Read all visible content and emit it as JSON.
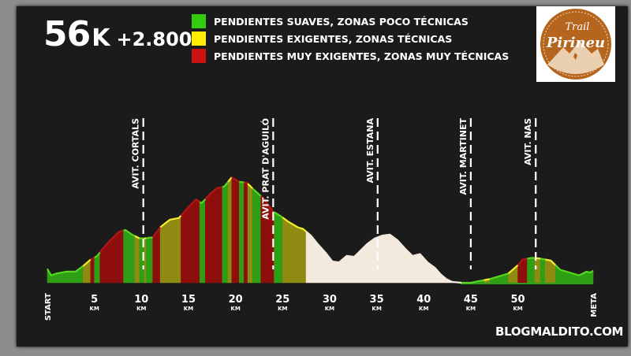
{
  "header": {
    "distance": "56",
    "unit": "K",
    "elevation_gain": "+2.800"
  },
  "legend": [
    {
      "label": "PENDIENTES SUAVES, ZONAS POCO TÉCNICAS",
      "color": "#33cc11"
    },
    {
      "label": "PENDIENTES EXIGENTES, ZONAS TÉCNICAS",
      "color": "#ffee00"
    },
    {
      "label": "PENDIENTES MUY EXIGENTES, ZONAS MUY TÉCNICAS",
      "color": "#cc1111"
    }
  ],
  "logo": {
    "line1": "Trail",
    "line2": "Pirineu",
    "color": "#b5651d"
  },
  "footer": "BLOGMALDITO.COM",
  "chart_data": {
    "type": "area",
    "xlim": [
      0,
      58
    ],
    "x_ticks": [
      {
        "x": 0,
        "label": "START",
        "unit": ""
      },
      {
        "x": 5,
        "label": "5",
        "unit": "KM"
      },
      {
        "x": 10,
        "label": "10",
        "unit": "KM"
      },
      {
        "x": 15,
        "label": "15",
        "unit": "KM"
      },
      {
        "x": 20,
        "label": "20",
        "unit": "KM"
      },
      {
        "x": 25,
        "label": "25",
        "unit": "KM"
      },
      {
        "x": 30,
        "label": "30",
        "unit": "KM"
      },
      {
        "x": 35,
        "label": "35",
        "unit": "KM"
      },
      {
        "x": 40,
        "label": "40",
        "unit": "KM"
      },
      {
        "x": 45,
        "label": "45",
        "unit": "KM"
      },
      {
        "x": 50,
        "label": "50",
        "unit": "KM"
      },
      {
        "x": 58,
        "label": "META",
        "unit": ""
      }
    ],
    "aid_stations": [
      {
        "km": 10.2,
        "label": "AVIT. CORTALS"
      },
      {
        "km": 24.0,
        "label": "AVIT. PRAT D'AGUILÓ"
      },
      {
        "km": 35.1,
        "label": "AVIT. ESTANA"
      },
      {
        "km": 45.0,
        "label": "AVIT. MARTINET"
      },
      {
        "km": 51.9,
        "label": "AVIT. NAS"
      }
    ],
    "elevation": [
      [
        0.0,
        0.15
      ],
      [
        0.4,
        0.08
      ],
      [
        1.0,
        0.1
      ],
      [
        2.0,
        0.12
      ],
      [
        3.0,
        0.12
      ],
      [
        3.8,
        0.18
      ],
      [
        4.6,
        0.25
      ],
      [
        5.3,
        0.29
      ],
      [
        6.0,
        0.38
      ],
      [
        6.8,
        0.47
      ],
      [
        7.6,
        0.55
      ],
      [
        8.3,
        0.57
      ],
      [
        9.0,
        0.52
      ],
      [
        9.8,
        0.48
      ],
      [
        10.4,
        0.48
      ],
      [
        11.2,
        0.49
      ],
      [
        12.0,
        0.6
      ],
      [
        13.0,
        0.68
      ],
      [
        14.0,
        0.7
      ],
      [
        15.0,
        0.82
      ],
      [
        15.8,
        0.9
      ],
      [
        16.4,
        0.86
      ],
      [
        17.3,
        0.96
      ],
      [
        18.0,
        1.02
      ],
      [
        18.8,
        1.04
      ],
      [
        19.6,
        1.14
      ],
      [
        20.4,
        1.09
      ],
      [
        21.2,
        1.08
      ],
      [
        22.0,
        1.0
      ],
      [
        23.0,
        0.91
      ],
      [
        24.0,
        0.77
      ],
      [
        24.8,
        0.72
      ],
      [
        25.6,
        0.66
      ],
      [
        26.6,
        0.6
      ],
      [
        27.2,
        0.58
      ],
      [
        28.0,
        0.51
      ],
      [
        28.8,
        0.41
      ],
      [
        29.6,
        0.32
      ],
      [
        30.3,
        0.23
      ],
      [
        31.0,
        0.22
      ],
      [
        31.8,
        0.29
      ],
      [
        32.6,
        0.28
      ],
      [
        33.3,
        0.35
      ],
      [
        34.0,
        0.42
      ],
      [
        34.8,
        0.48
      ],
      [
        35.6,
        0.51
      ],
      [
        36.4,
        0.52
      ],
      [
        37.2,
        0.46
      ],
      [
        38.0,
        0.37
      ],
      [
        38.8,
        0.29
      ],
      [
        39.6,
        0.31
      ],
      [
        40.4,
        0.22
      ],
      [
        41.2,
        0.16
      ],
      [
        41.8,
        0.09
      ],
      [
        42.4,
        0.04
      ],
      [
        43.0,
        0.01
      ],
      [
        44.0,
        0.0
      ],
      [
        45.0,
        0.0
      ],
      [
        46.0,
        0.02
      ],
      [
        47.0,
        0.04
      ],
      [
        48.0,
        0.07
      ],
      [
        49.0,
        0.1
      ],
      [
        50.0,
        0.19
      ],
      [
        50.5,
        0.25
      ],
      [
        51.5,
        0.27
      ],
      [
        52.5,
        0.26
      ],
      [
        53.5,
        0.24
      ],
      [
        54.5,
        0.14
      ],
      [
        55.5,
        0.11
      ],
      [
        56.5,
        0.08
      ],
      [
        57.3,
        0.12
      ],
      [
        57.7,
        0.11
      ],
      [
        58.0,
        0.13
      ]
    ],
    "segments": [
      {
        "from": 0.0,
        "to": 3.8,
        "difficulty": "green"
      },
      {
        "from": 3.8,
        "to": 4.6,
        "difficulty": "yellow"
      },
      {
        "from": 4.6,
        "to": 5.0,
        "difficulty": "red"
      },
      {
        "from": 5.0,
        "to": 5.6,
        "difficulty": "green"
      },
      {
        "from": 5.6,
        "to": 8.1,
        "difficulty": "red"
      },
      {
        "from": 8.1,
        "to": 9.3,
        "difficulty": "green"
      },
      {
        "from": 9.3,
        "to": 9.8,
        "difficulty": "yellow"
      },
      {
        "from": 9.8,
        "to": 10.3,
        "difficulty": "green"
      },
      {
        "from": 10.3,
        "to": 10.5,
        "difficulty": "yellow"
      },
      {
        "from": 10.5,
        "to": 11.2,
        "difficulty": "green"
      },
      {
        "from": 11.2,
        "to": 12.0,
        "difficulty": "red"
      },
      {
        "from": 12.0,
        "to": 14.2,
        "difficulty": "yellow"
      },
      {
        "from": 14.2,
        "to": 16.2,
        "difficulty": "red"
      },
      {
        "from": 16.2,
        "to": 16.8,
        "difficulty": "green"
      },
      {
        "from": 16.8,
        "to": 18.6,
        "difficulty": "red"
      },
      {
        "from": 18.6,
        "to": 19.2,
        "difficulty": "green"
      },
      {
        "from": 19.2,
        "to": 19.6,
        "difficulty": "yellow"
      },
      {
        "from": 19.6,
        "to": 20.4,
        "difficulty": "red"
      },
      {
        "from": 20.4,
        "to": 20.9,
        "difficulty": "green"
      },
      {
        "from": 20.9,
        "to": 21.3,
        "difficulty": "red"
      },
      {
        "from": 21.3,
        "to": 21.8,
        "difficulty": "yellow"
      },
      {
        "from": 21.8,
        "to": 22.7,
        "difficulty": "green"
      },
      {
        "from": 22.7,
        "to": 24.1,
        "difficulty": "red"
      },
      {
        "from": 24.1,
        "to": 25.0,
        "difficulty": "green"
      },
      {
        "from": 25.0,
        "to": 27.5,
        "difficulty": "yellow"
      },
      {
        "from": 27.5,
        "to": 44.0,
        "difficulty": "none"
      },
      {
        "from": 44.0,
        "to": 46.4,
        "difficulty": "green"
      },
      {
        "from": 46.4,
        "to": 47.0,
        "difficulty": "yellow"
      },
      {
        "from": 47.0,
        "to": 49.0,
        "difficulty": "green"
      },
      {
        "from": 49.0,
        "to": 50.0,
        "difficulty": "yellow"
      },
      {
        "from": 50.0,
        "to": 51.0,
        "difficulty": "red"
      },
      {
        "from": 51.0,
        "to": 51.8,
        "difficulty": "green"
      },
      {
        "from": 51.8,
        "to": 52.4,
        "difficulty": "yellow"
      },
      {
        "from": 52.4,
        "to": 52.9,
        "difficulty": "green"
      },
      {
        "from": 52.9,
        "to": 54.0,
        "difficulty": "yellow"
      },
      {
        "from": 54.0,
        "to": 58.0,
        "difficulty": "green"
      }
    ],
    "difficulty_fill": {
      "green": "#2e9e14",
      "yellow": "#8f8a12",
      "red": "#8e0d0d",
      "none": "#f3e9dc"
    },
    "difficulty_line": {
      "green": "#55d622",
      "yellow": "#f5ee2a",
      "red": "#b51515",
      "none": "#f3e9dc"
    }
  }
}
